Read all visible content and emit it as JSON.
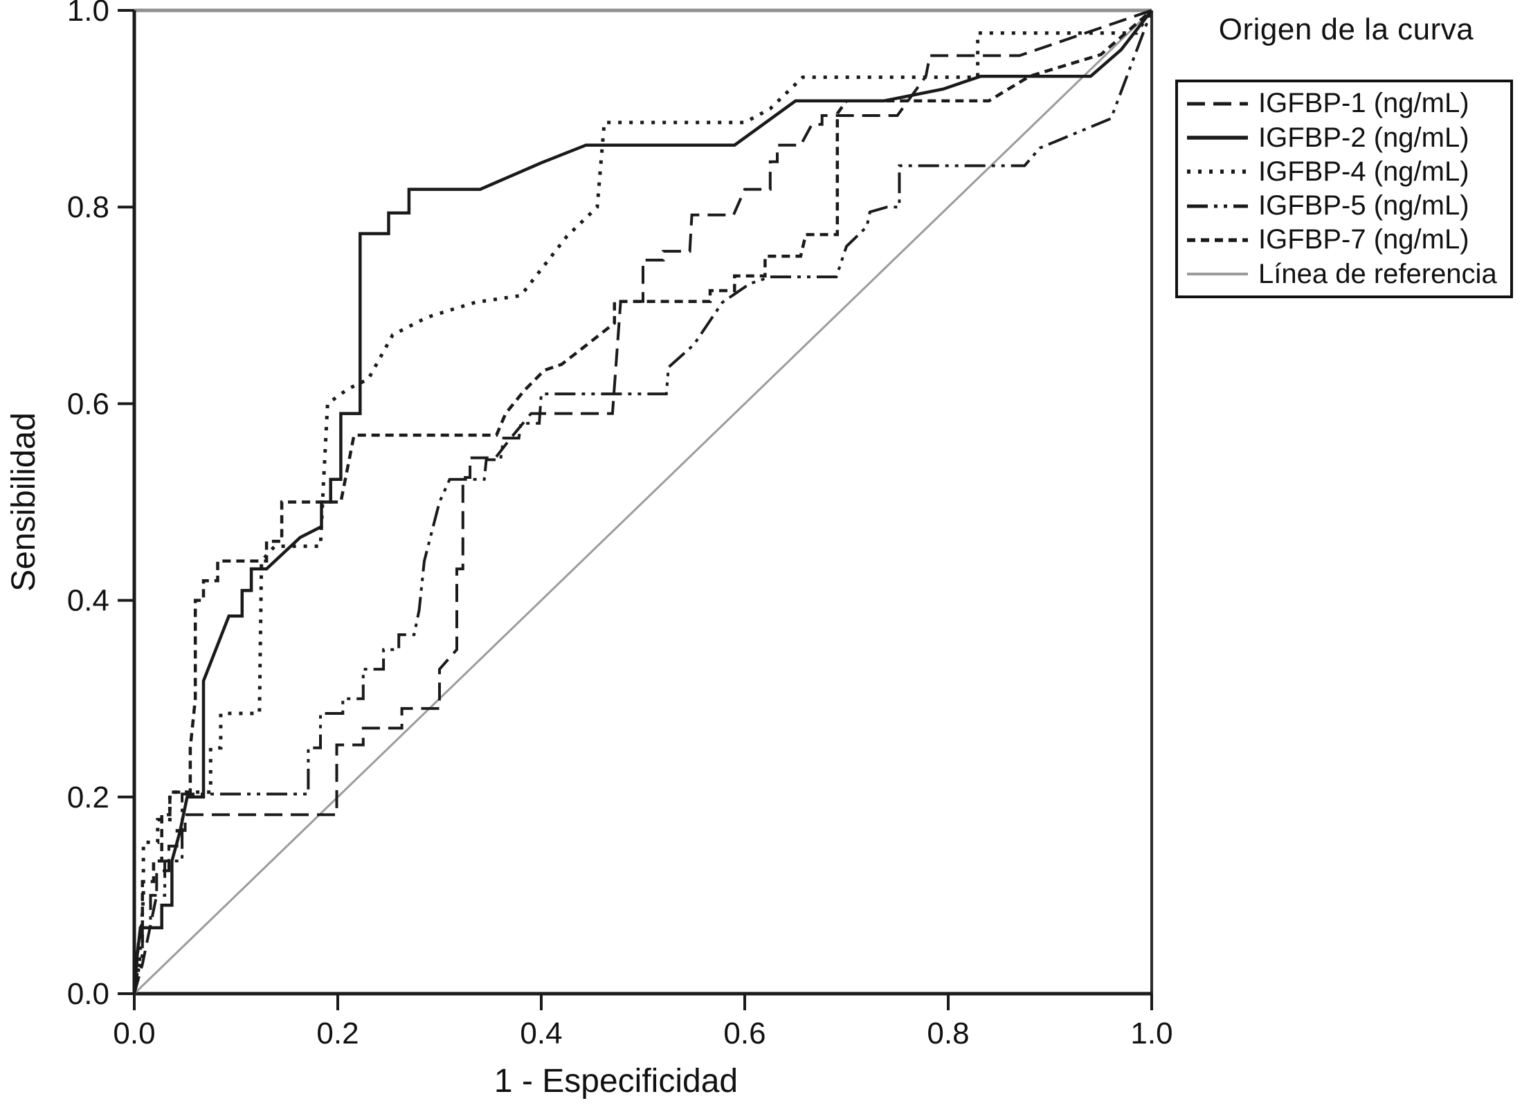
{
  "figure": {
    "kind": "ROC curve figure",
    "background": "#ffffff",
    "axis_color": "#1a1a1a",
    "text_color": "#111111"
  },
  "legend": {
    "title": "Origen de la curva"
  },
  "chart_data": {
    "type": "line",
    "title": "",
    "xlabel": "1 - Especificidad",
    "ylabel": "Sensibilidad",
    "xlim": [
      0.0,
      1.0
    ],
    "ylim": [
      0.0,
      1.0
    ],
    "xticks": [
      "0.0",
      "0.2",
      "0.4",
      "0.6",
      "0.8",
      "1.0"
    ],
    "yticks": [
      "0.0",
      "0.2",
      "0.4",
      "0.6",
      "0.8",
      "1.0"
    ],
    "grid": false,
    "legend_position": "right-outside",
    "legend_title": "Origen de la curva",
    "series": [
      {
        "name": "igfbp-1",
        "label": "IGFBP-1 (ng/mL)",
        "color": "#1a1a1a",
        "dash": "26 12",
        "width": 4,
        "points": [
          [
            0,
            0
          ],
          [
            0.008,
            0.03
          ],
          [
            0.016,
            0.07
          ],
          [
            0.022,
            0.1
          ],
          [
            0.022,
            0.125
          ],
          [
            0.034,
            0.125
          ],
          [
            0.034,
            0.15
          ],
          [
            0.042,
            0.15
          ],
          [
            0.042,
            0.166
          ],
          [
            0.05,
            0.166
          ],
          [
            0.05,
            0.182
          ],
          [
            0.199,
            0.182
          ],
          [
            0.199,
            0.253
          ],
          [
            0.225,
            0.253
          ],
          [
            0.225,
            0.27
          ],
          [
            0.263,
            0.27
          ],
          [
            0.263,
            0.29
          ],
          [
            0.3,
            0.29
          ],
          [
            0.3,
            0.33
          ],
          [
            0.317,
            0.35
          ],
          [
            0.317,
            0.432
          ],
          [
            0.323,
            0.432
          ],
          [
            0.323,
            0.525
          ],
          [
            0.33,
            0.525
          ],
          [
            0.33,
            0.545
          ],
          [
            0.355,
            0.545
          ],
          [
            0.37,
            0.565
          ],
          [
            0.39,
            0.59
          ],
          [
            0.47,
            0.59
          ],
          [
            0.478,
            0.704
          ],
          [
            0.5,
            0.704
          ],
          [
            0.5,
            0.746
          ],
          [
            0.52,
            0.746
          ],
          [
            0.52,
            0.755
          ],
          [
            0.546,
            0.755
          ],
          [
            0.548,
            0.792
          ],
          [
            0.589,
            0.792
          ],
          [
            0.6,
            0.818
          ],
          [
            0.625,
            0.818
          ],
          [
            0.625,
            0.846
          ],
          [
            0.632,
            0.846
          ],
          [
            0.632,
            0.863
          ],
          [
            0.655,
            0.863
          ],
          [
            0.666,
            0.884
          ],
          [
            0.676,
            0.884
          ],
          [
            0.676,
            0.893
          ],
          [
            0.75,
            0.893
          ],
          [
            0.778,
            0.933
          ],
          [
            0.782,
            0.954
          ],
          [
            0.87,
            0.954
          ],
          [
            1,
            1
          ]
        ]
      },
      {
        "name": "igfbp-2",
        "label": "IGFBP-2 (ng/mL)",
        "color": "#1a1a1a",
        "dash": "",
        "width": 4.5,
        "points": [
          [
            0,
            0
          ],
          [
            0.003,
            0.04
          ],
          [
            0.006,
            0.067
          ],
          [
            0.027,
            0.067
          ],
          [
            0.027,
            0.09
          ],
          [
            0.037,
            0.09
          ],
          [
            0.037,
            0.135
          ],
          [
            0.045,
            0.165
          ],
          [
            0.052,
            0.2
          ],
          [
            0.068,
            0.2
          ],
          [
            0.068,
            0.318
          ],
          [
            0.093,
            0.384
          ],
          [
            0.106,
            0.384
          ],
          [
            0.106,
            0.41
          ],
          [
            0.115,
            0.41
          ],
          [
            0.115,
            0.432
          ],
          [
            0.13,
            0.432
          ],
          [
            0.163,
            0.464
          ],
          [
            0.184,
            0.475
          ],
          [
            0.184,
            0.5
          ],
          [
            0.193,
            0.5
          ],
          [
            0.193,
            0.523
          ],
          [
            0.203,
            0.523
          ],
          [
            0.203,
            0.59
          ],
          [
            0.222,
            0.59
          ],
          [
            0.222,
            0.773
          ],
          [
            0.25,
            0.773
          ],
          [
            0.25,
            0.794
          ],
          [
            0.27,
            0.794
          ],
          [
            0.27,
            0.818
          ],
          [
            0.34,
            0.818
          ],
          [
            0.4,
            0.845
          ],
          [
            0.444,
            0.863
          ],
          [
            0.59,
            0.863
          ],
          [
            0.65,
            0.908
          ],
          [
            0.737,
            0.908
          ],
          [
            0.795,
            0.92
          ],
          [
            0.832,
            0.933
          ],
          [
            0.94,
            0.933
          ],
          [
            0.97,
            0.96
          ],
          [
            1,
            1
          ]
        ]
      },
      {
        "name": "igfbp-4",
        "label": "IGFBP-4 (ng/mL)",
        "color": "#1a1a1a",
        "dash": "5 11",
        "width": 5,
        "points": [
          [
            0,
            0
          ],
          [
            0.005,
            0.03
          ],
          [
            0.009,
            0.1
          ],
          [
            0.009,
            0.154
          ],
          [
            0.023,
            0.154
          ],
          [
            0.023,
            0.177
          ],
          [
            0.035,
            0.177
          ],
          [
            0.035,
            0.205
          ],
          [
            0.075,
            0.205
          ],
          [
            0.075,
            0.25
          ],
          [
            0.085,
            0.25
          ],
          [
            0.085,
            0.285
          ],
          [
            0.123,
            0.285
          ],
          [
            0.125,
            0.44
          ],
          [
            0.138,
            0.455
          ],
          [
            0.183,
            0.455
          ],
          [
            0.186,
            0.52
          ],
          [
            0.19,
            0.6
          ],
          [
            0.21,
            0.615
          ],
          [
            0.23,
            0.625
          ],
          [
            0.254,
            0.67
          ],
          [
            0.288,
            0.688
          ],
          [
            0.335,
            0.703
          ],
          [
            0.38,
            0.71
          ],
          [
            0.425,
            0.77
          ],
          [
            0.455,
            0.8
          ],
          [
            0.462,
            0.886
          ],
          [
            0.6,
            0.886
          ],
          [
            0.625,
            0.9
          ],
          [
            0.657,
            0.932
          ],
          [
            0.829,
            0.932
          ],
          [
            0.829,
            0.977
          ],
          [
            0.985,
            0.977
          ],
          [
            1,
            1
          ]
        ]
      },
      {
        "name": "igfbp-5",
        "label": "IGFBP-5 (ng/mL)",
        "color": "#1a1a1a",
        "dash": "30 9 5 9 5 9",
        "width": 4,
        "points": [
          [
            0,
            0
          ],
          [
            0.003,
            0.02
          ],
          [
            0.008,
            0.04
          ],
          [
            0.008,
            0.067
          ],
          [
            0.016,
            0.067
          ],
          [
            0.016,
            0.1
          ],
          [
            0.03,
            0.1
          ],
          [
            0.03,
            0.135
          ],
          [
            0.047,
            0.135
          ],
          [
            0.047,
            0.203
          ],
          [
            0.171,
            0.203
          ],
          [
            0.171,
            0.25
          ],
          [
            0.183,
            0.25
          ],
          [
            0.183,
            0.285
          ],
          [
            0.205,
            0.285
          ],
          [
            0.205,
            0.3
          ],
          [
            0.225,
            0.3
          ],
          [
            0.225,
            0.33
          ],
          [
            0.245,
            0.33
          ],
          [
            0.245,
            0.35
          ],
          [
            0.26,
            0.35
          ],
          [
            0.26,
            0.365
          ],
          [
            0.275,
            0.365
          ],
          [
            0.28,
            0.39
          ],
          [
            0.285,
            0.44
          ],
          [
            0.29,
            0.46
          ],
          [
            0.3,
            0.5
          ],
          [
            0.31,
            0.523
          ],
          [
            0.344,
            0.523
          ],
          [
            0.346,
            0.543
          ],
          [
            0.36,
            0.543
          ],
          [
            0.363,
            0.565
          ],
          [
            0.378,
            0.565
          ],
          [
            0.38,
            0.58
          ],
          [
            0.398,
            0.58
          ],
          [
            0.4,
            0.61
          ],
          [
            0.523,
            0.61
          ],
          [
            0.525,
            0.637
          ],
          [
            0.55,
            0.66
          ],
          [
            0.578,
            0.703
          ],
          [
            0.605,
            0.722
          ],
          [
            0.625,
            0.729
          ],
          [
            0.69,
            0.729
          ],
          [
            0.7,
            0.76
          ],
          [
            0.72,
            0.78
          ],
          [
            0.723,
            0.795
          ],
          [
            0.74,
            0.8
          ],
          [
            0.752,
            0.8
          ],
          [
            0.752,
            0.842
          ],
          [
            0.875,
            0.842
          ],
          [
            0.89,
            0.86
          ],
          [
            0.96,
            0.89
          ],
          [
            1,
            1
          ]
        ]
      },
      {
        "name": "igfbp-7",
        "label": "IGFBP-7 (ng/mL)",
        "color": "#1a1a1a",
        "dash": "12 8",
        "width": 4.5,
        "points": [
          [
            0,
            0
          ],
          [
            0.004,
            0.05
          ],
          [
            0.008,
            0.05
          ],
          [
            0.008,
            0.114
          ],
          [
            0.019,
            0.114
          ],
          [
            0.019,
            0.135
          ],
          [
            0.027,
            0.135
          ],
          [
            0.027,
            0.182
          ],
          [
            0.035,
            0.182
          ],
          [
            0.035,
            0.205
          ],
          [
            0.055,
            0.205
          ],
          [
            0.055,
            0.25
          ],
          [
            0.06,
            0.3
          ],
          [
            0.06,
            0.4
          ],
          [
            0.068,
            0.4
          ],
          [
            0.068,
            0.42
          ],
          [
            0.082,
            0.42
          ],
          [
            0.082,
            0.44
          ],
          [
            0.13,
            0.44
          ],
          [
            0.13,
            0.46
          ],
          [
            0.145,
            0.46
          ],
          [
            0.145,
            0.5
          ],
          [
            0.203,
            0.5
          ],
          [
            0.216,
            0.568
          ],
          [
            0.356,
            0.568
          ],
          [
            0.365,
            0.59
          ],
          [
            0.383,
            0.613
          ],
          [
            0.403,
            0.634
          ],
          [
            0.42,
            0.64
          ],
          [
            0.445,
            0.66
          ],
          [
            0.472,
            0.682
          ],
          [
            0.472,
            0.704
          ],
          [
            0.566,
            0.704
          ],
          [
            0.566,
            0.715
          ],
          [
            0.59,
            0.715
          ],
          [
            0.59,
            0.73
          ],
          [
            0.62,
            0.73
          ],
          [
            0.62,
            0.75
          ],
          [
            0.655,
            0.75
          ],
          [
            0.66,
            0.772
          ],
          [
            0.691,
            0.772
          ],
          [
            0.691,
            0.895
          ],
          [
            0.7,
            0.908
          ],
          [
            0.84,
            0.908
          ],
          [
            0.88,
            0.933
          ],
          [
            0.95,
            0.955
          ],
          [
            1,
            1
          ]
        ]
      },
      {
        "name": "linea-de-referencia",
        "label": "Línea de referencia",
        "color": "#9b9b9b",
        "dash": "",
        "width": 3,
        "points": [
          [
            0,
            0
          ],
          [
            1,
            1
          ]
        ]
      }
    ]
  }
}
